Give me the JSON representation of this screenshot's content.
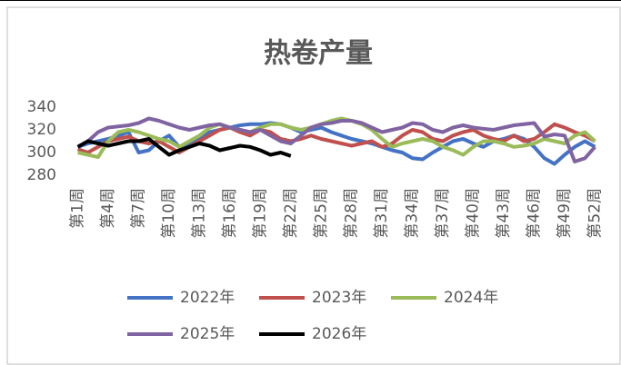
{
  "chart_data": {
    "type": "line",
    "title": "热卷产量",
    "categories": [
      "第1周",
      null,
      null,
      "第4周",
      null,
      null,
      "第7周",
      null,
      null,
      "第10周",
      null,
      null,
      "第13周",
      null,
      null,
      "第16周",
      null,
      null,
      "第19周",
      null,
      null,
      "第22周",
      null,
      null,
      "第25周",
      null,
      null,
      "第28周",
      null,
      null,
      "第31周",
      null,
      null,
      "第34周",
      null,
      null,
      "第37周",
      null,
      null,
      "第40周",
      null,
      null,
      "第43周",
      null,
      null,
      "第46周",
      null,
      null,
      "第49周",
      null,
      null,
      "第52周"
    ],
    "ylim": [
      280,
      340
    ],
    "yticks": [
      280,
      300,
      320,
      340
    ],
    "series": [
      {
        "name": "2022年",
        "color": "#4472c4",
        "values": [
          305,
          308,
          310,
          312,
          315,
          318,
          300,
          302,
          310,
          315,
          305,
          308,
          312,
          318,
          320,
          322,
          324,
          325,
          325,
          326,
          325,
          322,
          318,
          320,
          322,
          318,
          315,
          312,
          310,
          308,
          305,
          302,
          300,
          295,
          294,
          300,
          305,
          310,
          312,
          308,
          305,
          310,
          312,
          315,
          312,
          305,
          295,
          290,
          298,
          305,
          310,
          305
        ]
      },
      {
        "name": "2023年",
        "color": "#c0504d",
        "values": [
          303,
          300,
          305,
          310,
          312,
          314,
          310,
          308,
          310,
          305,
          300,
          305,
          310,
          315,
          320,
          322,
          318,
          315,
          320,
          318,
          312,
          310,
          312,
          315,
          312,
          310,
          308,
          306,
          308,
          310,
          305,
          308,
          315,
          320,
          318,
          312,
          310,
          315,
          318,
          320,
          315,
          312,
          310,
          315,
          310,
          312,
          318,
          325,
          322,
          318,
          315,
          310
        ]
      },
      {
        "name": "2024年",
        "color": "#9bbb59",
        "values": [
          300,
          298,
          296,
          310,
          318,
          320,
          318,
          315,
          312,
          310,
          305,
          310,
          315,
          322,
          325,
          322,
          320,
          318,
          322,
          325,
          325,
          322,
          320,
          322,
          325,
          328,
          330,
          328,
          325,
          320,
          312,
          305,
          308,
          310,
          312,
          310,
          305,
          302,
          298,
          305,
          310,
          310,
          308,
          305,
          306,
          308,
          312,
          310,
          308,
          315,
          318,
          310
        ]
      },
      {
        "name": "2025年",
        "color": "#8064a2",
        "values": [
          305,
          310,
          318,
          322,
          323,
          324,
          326,
          330,
          328,
          325,
          322,
          320,
          322,
          324,
          325,
          322,
          320,
          318,
          320,
          315,
          310,
          308,
          315,
          322,
          325,
          326,
          328,
          328,
          326,
          322,
          318,
          320,
          322,
          326,
          325,
          320,
          318,
          322,
          324,
          322,
          321,
          320,
          322,
          324,
          325,
          326,
          314,
          316,
          315,
          292,
          295,
          305
        ]
      },
      {
        "name": "2026年",
        "color": "#000000",
        "values": [
          305,
          310,
          308,
          306,
          308,
          310,
          310,
          312,
          305,
          298,
          302,
          305,
          308,
          306,
          302,
          304,
          306,
          305,
          302,
          298,
          300,
          297,
          null,
          null,
          null,
          null,
          null,
          null,
          null,
          null,
          null,
          null,
          null,
          null,
          null,
          null,
          null,
          null,
          null,
          null,
          null,
          null,
          null,
          null,
          null,
          null,
          null,
          null,
          null,
          null,
          null,
          null
        ]
      }
    ]
  }
}
